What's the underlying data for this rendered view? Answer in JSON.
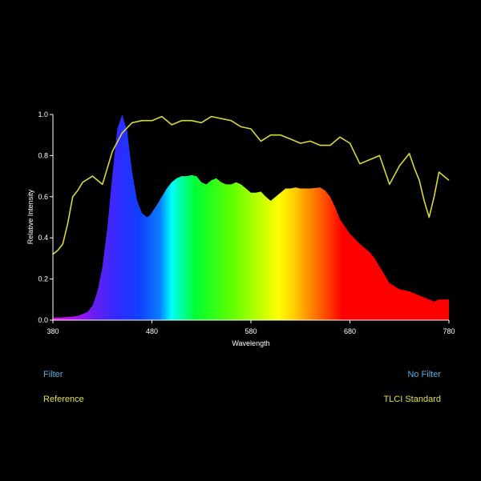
{
  "chart_data": {
    "type": "area",
    "xlabel": "Wavelength",
    "ylabel": "Relative Intensity",
    "xlim": [
      380,
      780
    ],
    "ylim": [
      0,
      1
    ],
    "x_ticks": [
      "380",
      "480",
      "580",
      "680",
      "780"
    ],
    "y_ticks": [
      "0.0",
      "0.2",
      "0.4",
      "0.6",
      "0.8",
      "1.0"
    ],
    "grid": false,
    "series": [
      {
        "color": "spectrum",
        "x": [
          380,
          395,
          405,
          415,
          420,
          425,
          430,
          435,
          440,
          445,
          450,
          455,
          460,
          465,
          470,
          475,
          478,
          485,
          490,
          495,
          500,
          505,
          510,
          515,
          520,
          525,
          530,
          535,
          540,
          545,
          550,
          555,
          560,
          565,
          570,
          575,
          580,
          585,
          590,
          595,
          600,
          605,
          610,
          615,
          620,
          625,
          630,
          640,
          650,
          655,
          660,
          665,
          670,
          680,
          690,
          700,
          705,
          710,
          720,
          730,
          740,
          750,
          760,
          765,
          770,
          780
        ],
        "values": [
          0.01,
          0.015,
          0.02,
          0.04,
          0.07,
          0.14,
          0.26,
          0.45,
          0.7,
          0.93,
          1.0,
          0.92,
          0.72,
          0.58,
          0.52,
          0.5,
          0.51,
          0.56,
          0.6,
          0.64,
          0.67,
          0.69,
          0.7,
          0.7,
          0.705,
          0.7,
          0.67,
          0.66,
          0.68,
          0.69,
          0.67,
          0.66,
          0.66,
          0.67,
          0.66,
          0.64,
          0.62,
          0.62,
          0.625,
          0.6,
          0.58,
          0.6,
          0.62,
          0.64,
          0.64,
          0.645,
          0.64,
          0.64,
          0.645,
          0.63,
          0.6,
          0.55,
          0.49,
          0.42,
          0.37,
          0.33,
          0.3,
          0.26,
          0.18,
          0.15,
          0.14,
          0.12,
          0.1,
          0.09,
          0.1,
          0.1
        ]
      },
      {
        "color": "#d8d83a",
        "x": [
          380,
          385,
          390,
          395,
          400,
          405,
          410,
          420,
          430,
          440,
          450,
          460,
          470,
          480,
          490,
          500,
          510,
          520,
          530,
          540,
          550,
          560,
          570,
          580,
          590,
          600,
          610,
          620,
          630,
          640,
          650,
          660,
          670,
          680,
          690,
          700,
          710,
          720,
          730,
          740,
          745,
          750,
          755,
          760,
          765,
          770,
          775,
          780
        ],
        "values": [
          0.32,
          0.34,
          0.37,
          0.47,
          0.6,
          0.63,
          0.67,
          0.7,
          0.66,
          0.82,
          0.91,
          0.96,
          0.97,
          0.97,
          0.99,
          0.95,
          0.97,
          0.97,
          0.96,
          0.99,
          0.98,
          0.97,
          0.94,
          0.93,
          0.87,
          0.9,
          0.9,
          0.88,
          0.86,
          0.87,
          0.85,
          0.85,
          0.89,
          0.86,
          0.76,
          0.78,
          0.8,
          0.66,
          0.75,
          0.81,
          0.74,
          0.68,
          0.58,
          0.5,
          0.6,
          0.72,
          0.7,
          0.68
        ]
      }
    ]
  },
  "legend": {
    "filter_label": "Filter",
    "no_filter_label": "No Filter",
    "reference_label": "Reference",
    "tlci_label": "TLCI Standard"
  },
  "colors": {
    "background": "#000000",
    "axis": "#ffffff",
    "reference_line": "#d8d83a",
    "filter_text": "#4ab3e6",
    "reference_text": "#e0e04a"
  }
}
